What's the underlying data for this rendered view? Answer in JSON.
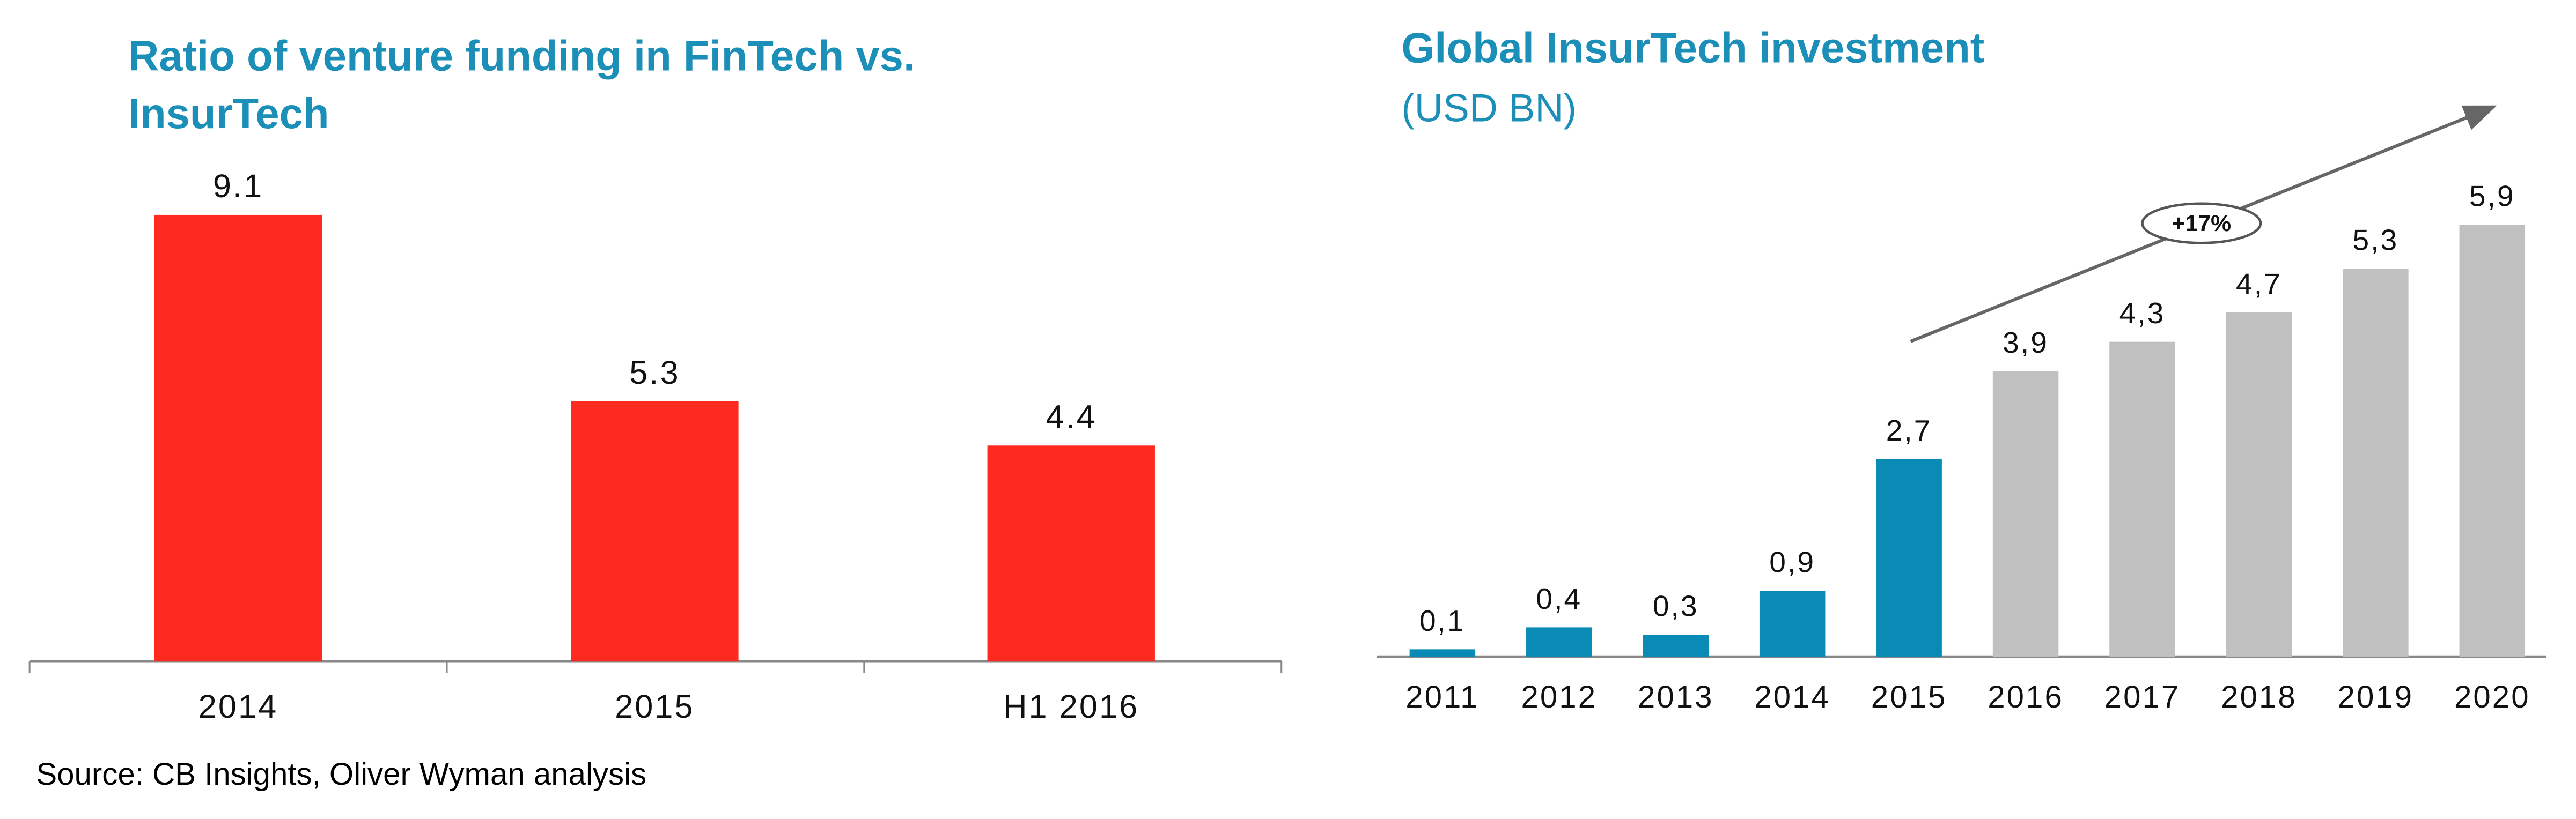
{
  "chart_data": [
    {
      "type": "bar",
      "title": "Ratio of venture funding in FinTech vs. InsurTech",
      "categories": [
        "2014",
        "2015",
        "H1 2016"
      ],
      "values": [
        9.1,
        5.3,
        4.4
      ],
      "color": "#ff2a1f",
      "source": "Source: CB Insights, Oliver Wyman analysis"
    },
    {
      "type": "bar",
      "title": "Global InsurTech investment",
      "subtitle": "(USD BN)",
      "categories": [
        "2011",
        "2012",
        "2013",
        "2014",
        "2015",
        "2016",
        "2017",
        "2018",
        "2019",
        "2020"
      ],
      "values": [
        0.1,
        0.4,
        0.3,
        0.9,
        2.7,
        3.9,
        4.3,
        4.7,
        5.3,
        5.9
      ],
      "value_labels": [
        "0,1",
        "0,4",
        "0,3",
        "0,9",
        "2,7",
        "3,9",
        "4,3",
        "4,7",
        "5,3",
        "5,9"
      ],
      "colors": [
        "#0a8bb5",
        "#0a8bb5",
        "#0a8bb5",
        "#0a8bb5",
        "#0a8bb5",
        "#c0c0c0",
        "#c0c0c0",
        "#c0c0c0",
        "#c0c0c0",
        "#c0c0c0"
      ],
      "annotation": "+17%"
    }
  ]
}
